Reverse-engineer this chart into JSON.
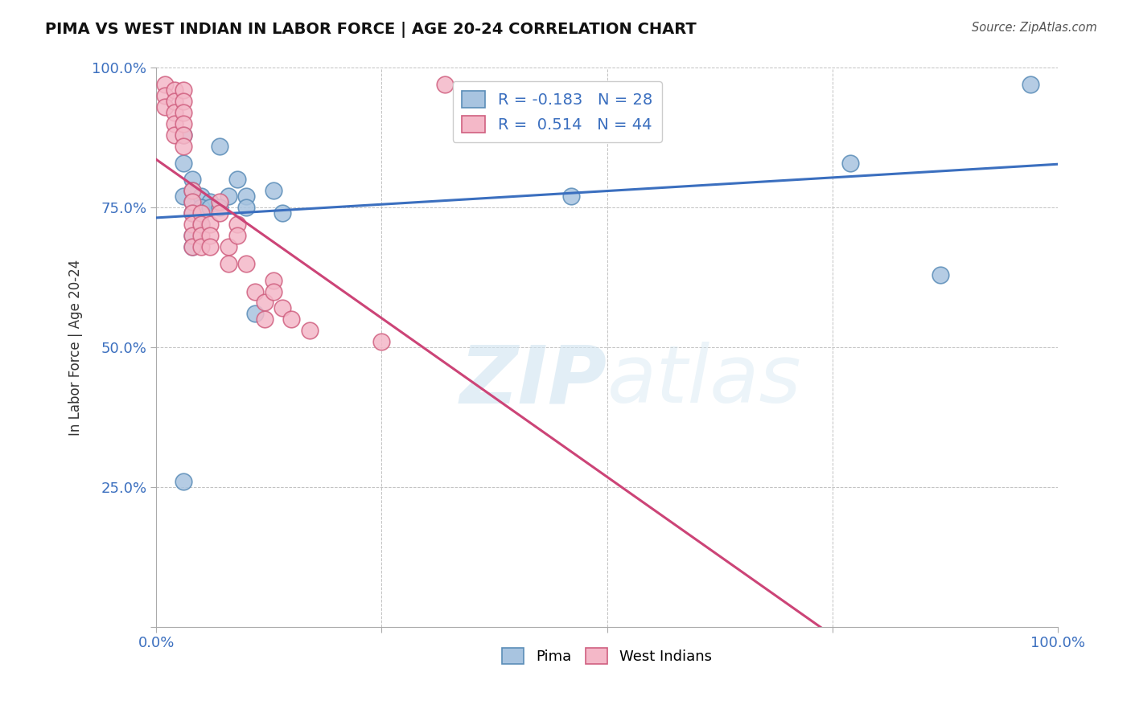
{
  "title": "PIMA VS WEST INDIAN IN LABOR FORCE | AGE 20-24 CORRELATION CHART",
  "source": "Source: ZipAtlas.com",
  "ylabel": "In Labor Force | Age 20-24",
  "watermark": "ZIPatlas",
  "pima_R": -0.183,
  "pima_N": 28,
  "west_indian_R": 0.514,
  "west_indian_N": 44,
  "xlim": [
    0.0,
    1.0
  ],
  "ylim": [
    0.0,
    1.0
  ],
  "pima_color": "#A8C4E0",
  "pima_edge_color": "#5B8DB8",
  "west_indian_color": "#F4B8C8",
  "west_indian_edge_color": "#D06080",
  "pima_line_color": "#3B6FBF",
  "west_indian_line_color": "#CC4477",
  "background_color": "#FFFFFF",
  "pima_x": [
    0.03,
    0.03,
    0.03,
    0.04,
    0.04,
    0.04,
    0.04,
    0.05,
    0.06,
    0.07,
    0.08,
    0.09,
    0.1,
    0.1,
    0.11,
    0.13,
    0.14,
    0.03,
    0.04,
    0.04,
    0.05,
    0.05,
    0.06,
    0.07,
    0.46,
    0.77,
    0.87,
    0.97
  ],
  "pima_y": [
    0.88,
    0.83,
    0.77,
    0.8,
    0.78,
    0.76,
    0.74,
    0.77,
    0.76,
    0.86,
    0.77,
    0.8,
    0.77,
    0.75,
    0.56,
    0.78,
    0.74,
    0.26,
    0.7,
    0.68,
    0.75,
    0.72,
    0.75,
    0.75,
    0.77,
    0.83,
    0.63,
    0.97
  ],
  "west_indian_x": [
    0.01,
    0.01,
    0.01,
    0.02,
    0.02,
    0.02,
    0.02,
    0.02,
    0.03,
    0.03,
    0.03,
    0.03,
    0.03,
    0.03,
    0.04,
    0.04,
    0.04,
    0.04,
    0.04,
    0.04,
    0.05,
    0.05,
    0.05,
    0.05,
    0.06,
    0.06,
    0.06,
    0.07,
    0.07,
    0.08,
    0.08,
    0.09,
    0.09,
    0.1,
    0.11,
    0.12,
    0.12,
    0.13,
    0.13,
    0.14,
    0.15,
    0.17,
    0.25,
    0.32
  ],
  "west_indian_y": [
    0.97,
    0.95,
    0.93,
    0.96,
    0.94,
    0.92,
    0.9,
    0.88,
    0.96,
    0.94,
    0.92,
    0.9,
    0.88,
    0.86,
    0.78,
    0.76,
    0.74,
    0.72,
    0.7,
    0.68,
    0.74,
    0.72,
    0.7,
    0.68,
    0.72,
    0.7,
    0.68,
    0.76,
    0.74,
    0.68,
    0.65,
    0.72,
    0.7,
    0.65,
    0.6,
    0.58,
    0.55,
    0.62,
    0.6,
    0.57,
    0.55,
    0.53,
    0.51,
    0.97
  ]
}
